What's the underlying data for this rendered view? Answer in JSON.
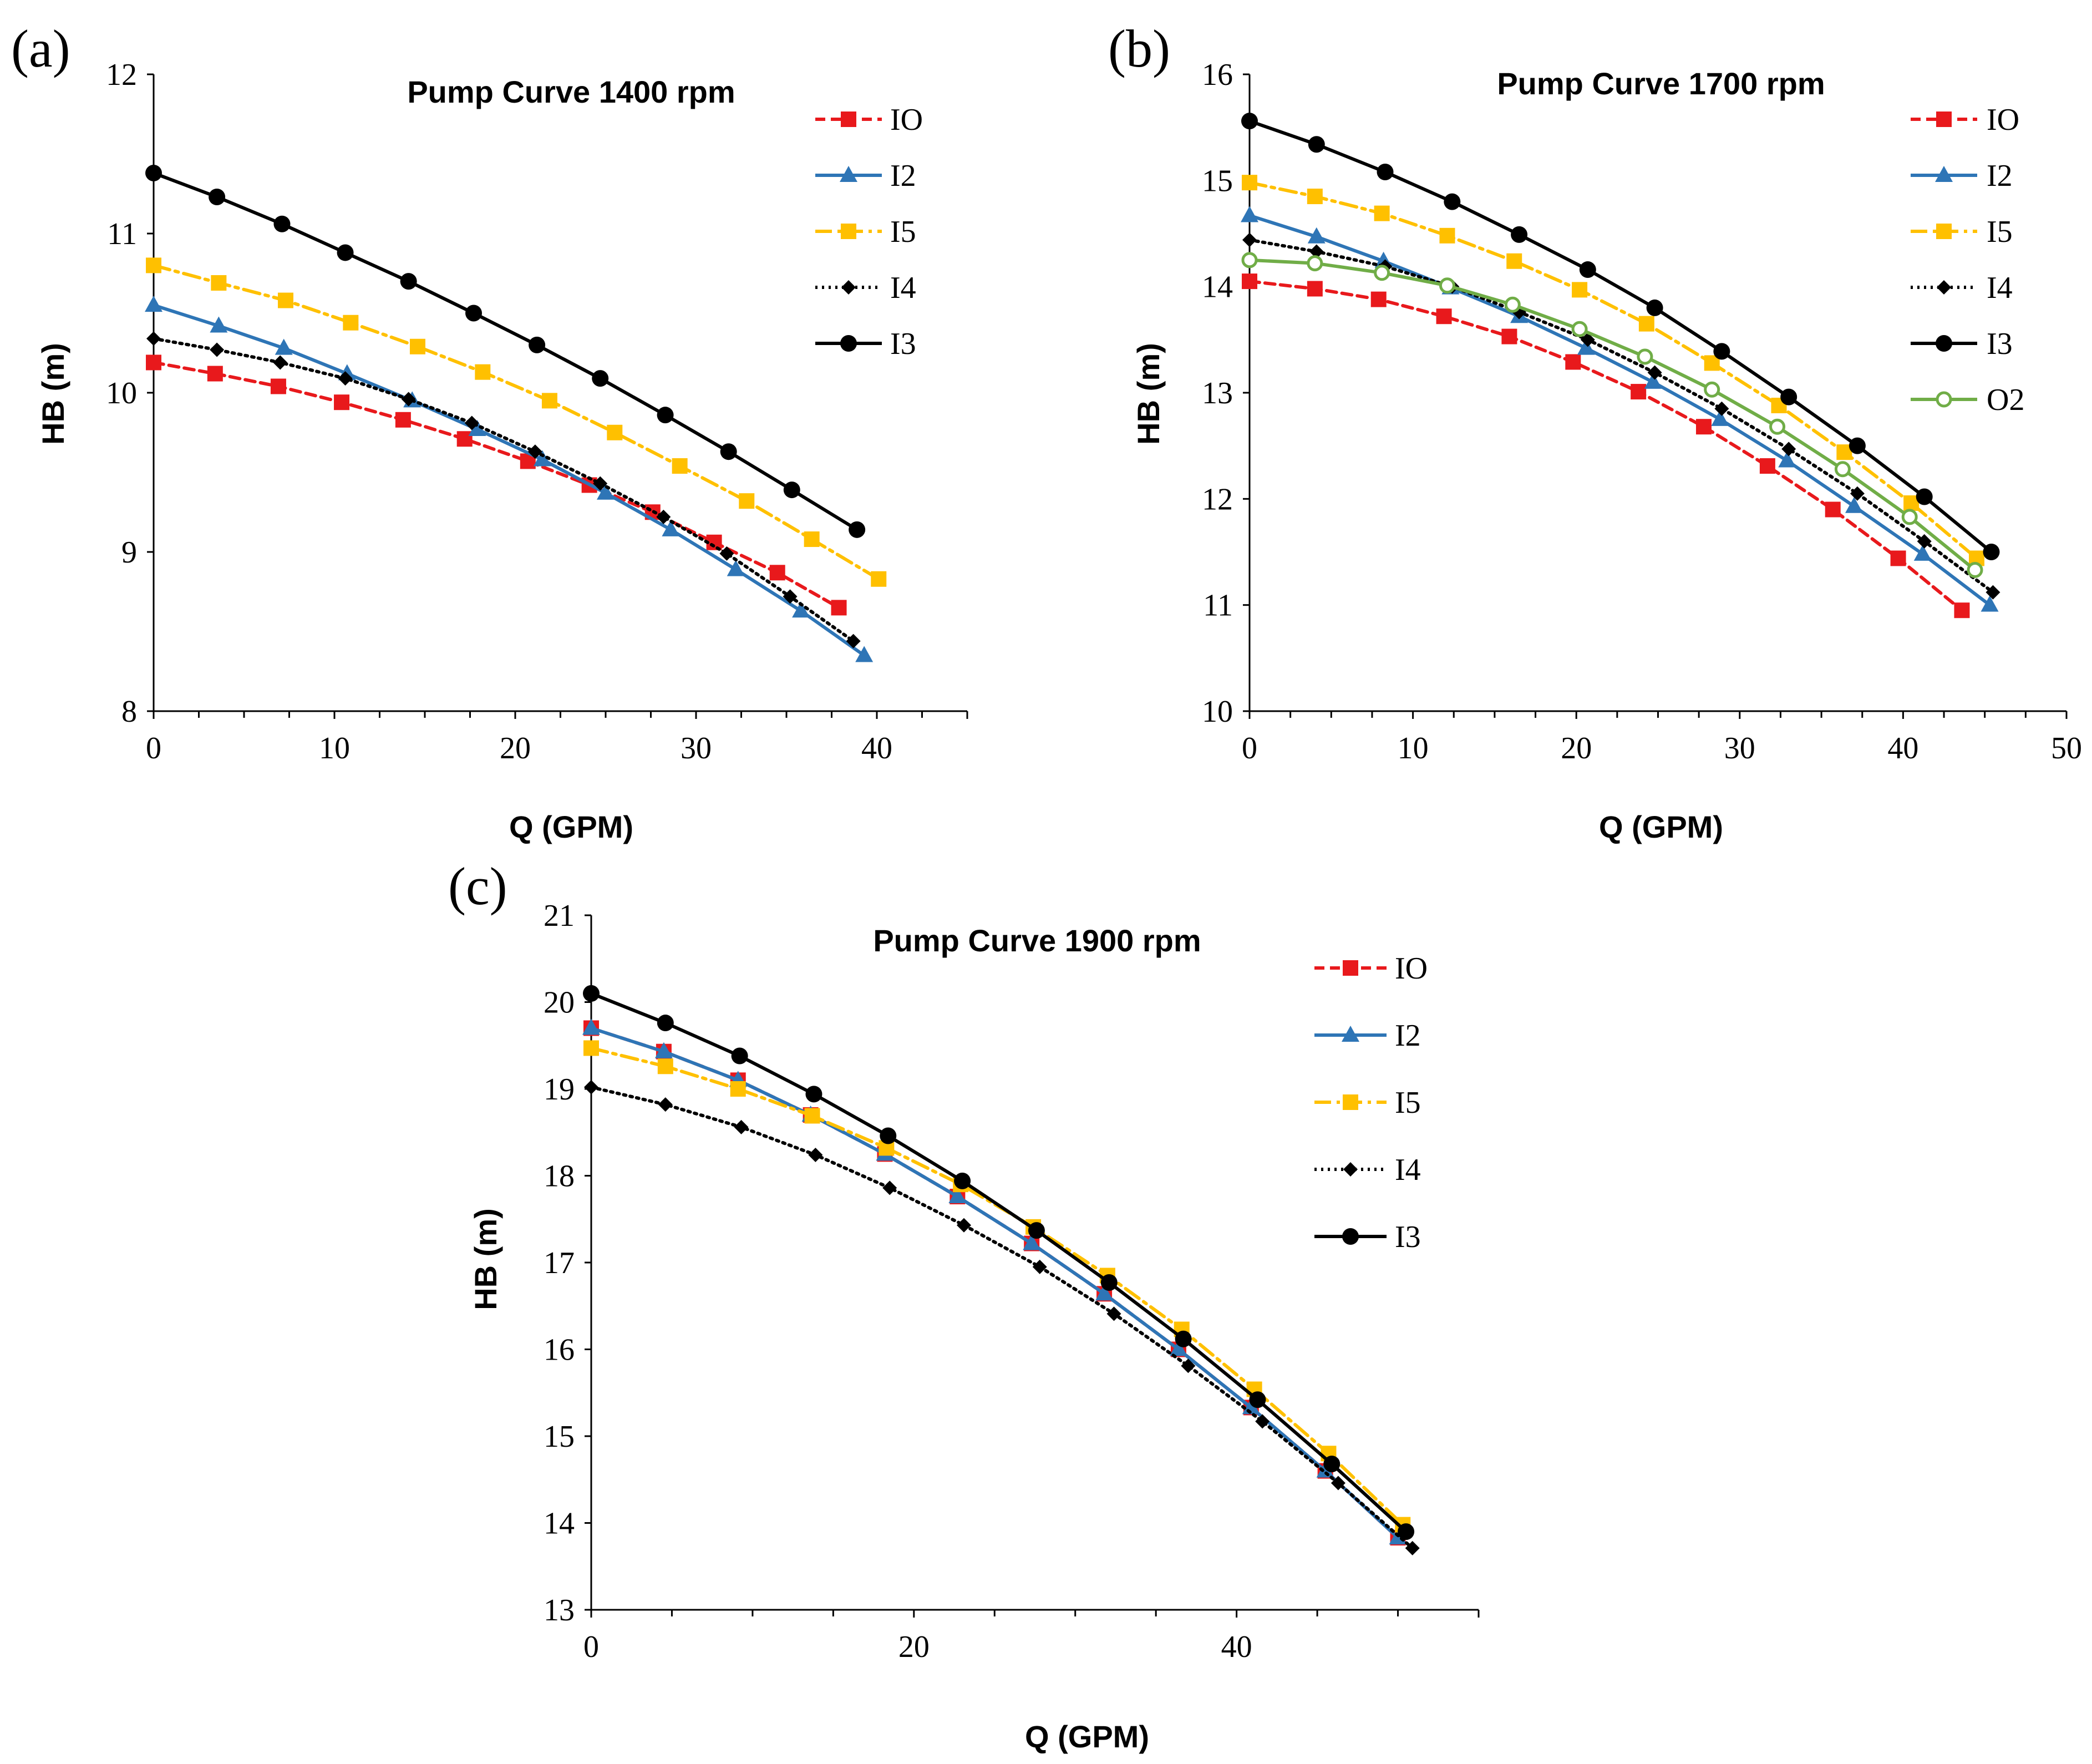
{
  "chart_data": [
    {
      "panel": "(a)",
      "type": "line",
      "title": "Pump Curve 1400 rpm",
      "xlabel": "Q (GPM)",
      "ylabel": "HB (m)",
      "xlim": [
        0,
        45
      ],
      "ylim": [
        8,
        12
      ],
      "xticks": [
        0,
        10,
        20,
        30,
        40
      ],
      "yticks": [
        8,
        9,
        10,
        11,
        12
      ],
      "legend_position": "top-right",
      "series": [
        {
          "name": "IO",
          "color": "#e8191c",
          "dash": "dashed",
          "marker": "square",
          "x": [
            0,
            3.4,
            6.9,
            10.4,
            13.8,
            17.2,
            20.7,
            24.1,
            27.6,
            31.0,
            34.5,
            37.9
          ],
          "y": [
            10.19,
            10.12,
            10.04,
            9.94,
            9.83,
            9.71,
            9.57,
            9.42,
            9.25,
            9.06,
            8.87,
            8.65
          ]
        },
        {
          "name": "I2",
          "color": "#2e75b6",
          "dash": "solid",
          "marker": "triangle",
          "x": [
            0,
            3.6,
            7.2,
            10.7,
            14.3,
            17.9,
            21.5,
            25.0,
            28.6,
            32.2,
            35.8,
            39.3
          ],
          "y": [
            10.55,
            10.42,
            10.28,
            10.12,
            9.95,
            9.77,
            9.58,
            9.37,
            9.14,
            8.89,
            8.63,
            8.35
          ]
        },
        {
          "name": "I5",
          "color": "#ffc000",
          "dash": "dashdot",
          "marker": "square",
          "x": [
            0,
            3.6,
            7.3,
            10.9,
            14.6,
            18.2,
            21.9,
            25.5,
            29.1,
            32.8,
            36.4,
            40.1
          ],
          "y": [
            10.8,
            10.69,
            10.58,
            10.44,
            10.29,
            10.13,
            9.95,
            9.75,
            9.54,
            9.32,
            9.08,
            8.83
          ]
        },
        {
          "name": "I4",
          "color": "#000000",
          "dash": "dotted",
          "marker": "diamond",
          "x": [
            0,
            3.5,
            7.0,
            10.6,
            14.1,
            17.6,
            21.1,
            24.7,
            28.2,
            31.7,
            35.2,
            38.7
          ],
          "y": [
            10.34,
            10.27,
            10.19,
            10.09,
            9.96,
            9.81,
            9.63,
            9.43,
            9.22,
            8.99,
            8.72,
            8.44
          ]
        },
        {
          "name": "I3",
          "color": "#000000",
          "dash": "solid",
          "marker": "circle",
          "x": [
            0,
            3.5,
            7.1,
            10.6,
            14.1,
            17.7,
            21.2,
            24.7,
            28.3,
            31.8,
            35.3,
            38.9
          ],
          "y": [
            11.38,
            11.23,
            11.06,
            10.88,
            10.7,
            10.5,
            10.3,
            10.09,
            9.86,
            9.63,
            9.39,
            9.14
          ]
        }
      ]
    },
    {
      "panel": "(b)",
      "type": "line",
      "title": "Pump Curve 1700 rpm",
      "xlabel": "Q (GPM)",
      "ylabel": "HB (m)",
      "xlim": [
        0,
        50
      ],
      "ylim": [
        10,
        16
      ],
      "xticks": [
        0,
        10,
        20,
        30,
        40,
        50
      ],
      "yticks": [
        10,
        11,
        12,
        13,
        14,
        15,
        16
      ],
      "legend_position": "top-right",
      "series": [
        {
          "name": "IO",
          "color": "#e8191c",
          "dash": "dashed",
          "marker": "square",
          "x": [
            0,
            4.0,
            7.9,
            11.9,
            15.9,
            19.8,
            23.8,
            27.8,
            31.7,
            35.7,
            39.7,
            43.6
          ],
          "y": [
            14.05,
            13.98,
            13.88,
            13.72,
            13.53,
            13.29,
            13.01,
            12.68,
            12.31,
            11.9,
            11.44,
            10.95
          ]
        },
        {
          "name": "I2",
          "color": "#2e75b6",
          "dash": "solid",
          "marker": "triangle",
          "x": [
            0,
            4.1,
            8.2,
            12.3,
            16.5,
            20.6,
            24.7,
            28.8,
            32.9,
            37.0,
            41.2,
            45.3
          ],
          "y": [
            14.67,
            14.47,
            14.24,
            13.99,
            13.72,
            13.42,
            13.1,
            12.75,
            12.36,
            11.93,
            11.48,
            11.0
          ]
        },
        {
          "name": "I5",
          "color": "#ffc000",
          "dash": "dashdot",
          "marker": "square",
          "x": [
            0,
            4.0,
            8.1,
            12.1,
            16.2,
            20.2,
            24.3,
            28.3,
            32.4,
            36.4,
            40.5,
            44.5
          ],
          "y": [
            14.98,
            14.85,
            14.69,
            14.48,
            14.24,
            13.97,
            13.65,
            13.28,
            12.88,
            12.44,
            11.96,
            11.44
          ]
        },
        {
          "name": "I4",
          "color": "#000000",
          "dash": "dotted",
          "marker": "diamond",
          "x": [
            0,
            4.1,
            8.3,
            12.4,
            16.5,
            20.7,
            24.8,
            28.9,
            33.0,
            37.2,
            41.3,
            45.5
          ],
          "y": [
            14.44,
            14.33,
            14.19,
            14.0,
            13.76,
            13.5,
            13.19,
            12.85,
            12.47,
            12.05,
            11.6,
            11.12
          ]
        },
        {
          "name": "I3",
          "color": "#000000",
          "dash": "solid",
          "marker": "circle",
          "x": [
            0,
            4.1,
            8.3,
            12.4,
            16.5,
            20.7,
            24.8,
            28.9,
            33.0,
            37.2,
            41.3,
            45.4
          ],
          "y": [
            15.56,
            15.34,
            15.08,
            14.8,
            14.49,
            14.16,
            13.8,
            13.39,
            12.96,
            12.5,
            12.02,
            11.5
          ]
        },
        {
          "name": "O2",
          "color": "#70ad47",
          "dash": "solid",
          "marker": "open-circle",
          "x": [
            0,
            4.0,
            8.1,
            12.1,
            16.1,
            20.2,
            24.2,
            28.3,
            32.3,
            36.3,
            40.4,
            44.4
          ],
          "y": [
            14.25,
            14.22,
            14.13,
            14.01,
            13.83,
            13.6,
            13.34,
            13.03,
            12.68,
            12.28,
            11.83,
            11.33
          ]
        }
      ]
    },
    {
      "panel": "(c)",
      "type": "line",
      "title": "Pump Curve 1900 rpm",
      "xlabel": "Q (GPM)",
      "ylabel": "HB (m)",
      "xlim": [
        0,
        55
      ],
      "ylim": [
        13,
        21
      ],
      "xticks": [
        0,
        20,
        40
      ],
      "yticks": [
        13,
        14,
        15,
        16,
        17,
        18,
        19,
        20,
        21
      ],
      "legend_position": "top-right",
      "series": [
        {
          "name": "IO",
          "color": "#e8191c",
          "dash": "dashed",
          "marker": "square",
          "x": [
            0,
            4.5,
            9.1,
            13.6,
            18.2,
            22.7,
            27.3,
            31.8,
            36.4,
            40.9,
            45.5,
            50.0
          ],
          "y": [
            19.7,
            19.43,
            19.1,
            18.7,
            18.25,
            17.76,
            17.22,
            16.64,
            16.0,
            15.33,
            14.6,
            13.83
          ]
        },
        {
          "name": "I2",
          "color": "#2e75b6",
          "dash": "solid",
          "marker": "triangle",
          "x": [
            0,
            4.5,
            9.1,
            13.6,
            18.2,
            22.7,
            27.3,
            31.8,
            36.4,
            40.9,
            45.5,
            50.0
          ],
          "y": [
            19.7,
            19.43,
            19.1,
            18.7,
            18.25,
            17.76,
            17.22,
            16.64,
            16.0,
            15.33,
            14.6,
            13.83
          ]
        },
        {
          "name": "I5",
          "color": "#ffc000",
          "dash": "dashdot",
          "marker": "square",
          "x": [
            0,
            4.6,
            9.1,
            13.7,
            18.3,
            22.9,
            27.4,
            32.0,
            36.6,
            41.1,
            45.7,
            50.3
          ],
          "y": [
            19.47,
            19.26,
            19.0,
            18.69,
            18.32,
            17.9,
            17.41,
            16.85,
            16.23,
            15.54,
            14.8,
            13.98
          ]
        },
        {
          "name": "I4",
          "color": "#000000",
          "dash": "dotted",
          "marker": "diamond",
          "x": [
            0,
            4.6,
            9.3,
            13.9,
            18.5,
            23.1,
            27.8,
            32.4,
            37.0,
            41.6,
            46.3,
            50.9
          ],
          "y": [
            19.02,
            18.82,
            18.56,
            18.24,
            17.86,
            17.43,
            16.95,
            16.41,
            15.81,
            15.17,
            14.46,
            13.71
          ]
        },
        {
          "name": "I3",
          "color": "#000000",
          "dash": "solid",
          "marker": "circle",
          "x": [
            0,
            4.6,
            9.2,
            13.8,
            18.4,
            23.0,
            27.6,
            32.1,
            36.7,
            41.3,
            45.9,
            50.5
          ],
          "y": [
            20.1,
            19.76,
            19.38,
            18.94,
            18.46,
            17.94,
            17.37,
            16.77,
            16.12,
            15.42,
            14.68,
            13.9
          ]
        }
      ]
    }
  ]
}
